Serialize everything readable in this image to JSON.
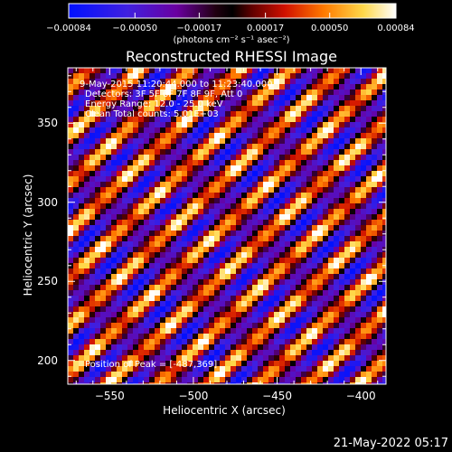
{
  "chart_data": {
    "type": "heatmap",
    "title": "Reconstructed RHESSI Image",
    "xlabel": "Heliocentric X (arcsec)",
    "ylabel": "Heliocentric Y (arcsec)",
    "xlim": [
      -575,
      -385
    ],
    "ylim": [
      185,
      385
    ],
    "x_ticks": [
      -550,
      -500,
      -450,
      -400
    ],
    "x_tick_labels": [
      "−550",
      "−500",
      "−450",
      "−400"
    ],
    "y_ticks": [
      200,
      250,
      300,
      350
    ],
    "y_tick_labels": [
      "200",
      "250",
      "300",
      "350"
    ],
    "colorbar": {
      "range": [
        -0.00084,
        0.00084
      ],
      "ticks": [
        -0.00084,
        -0.0005,
        -0.00017,
        0.00017,
        0.0005,
        0.00084
      ],
      "tick_labels": [
        "−0.00084",
        "−0.00050",
        "−0.00017",
        "0.00017",
        "0.00050",
        "0.00084"
      ],
      "unit": "(photons cm⁻² s⁻¹ asec⁻²)",
      "colors": [
        "#0000ff",
        "#5a00b4",
        "#000000",
        "#b00000",
        "#ff7000",
        "#ffd040",
        "#ffffe0"
      ]
    },
    "annotations": {
      "time_range": "9-May-2015 11:20:44.000 to 11:23:40.000",
      "detectors": "Detectors: 3F 5F 6F 7F 8F 9F, Att 0",
      "energy": "Energy Range: 12.0 - 25.0 keV",
      "method": "Clean     Total counts: 5.01E+03",
      "peak": "Position of Peak = [-487,369]"
    },
    "pattern": {
      "stripe_slope": 1.0,
      "stripe_spacing_arcsec": 30,
      "peak": [
        -487,
        369
      ]
    },
    "grid": false
  },
  "footer": {
    "date": "21-May-2022 05:17"
  }
}
